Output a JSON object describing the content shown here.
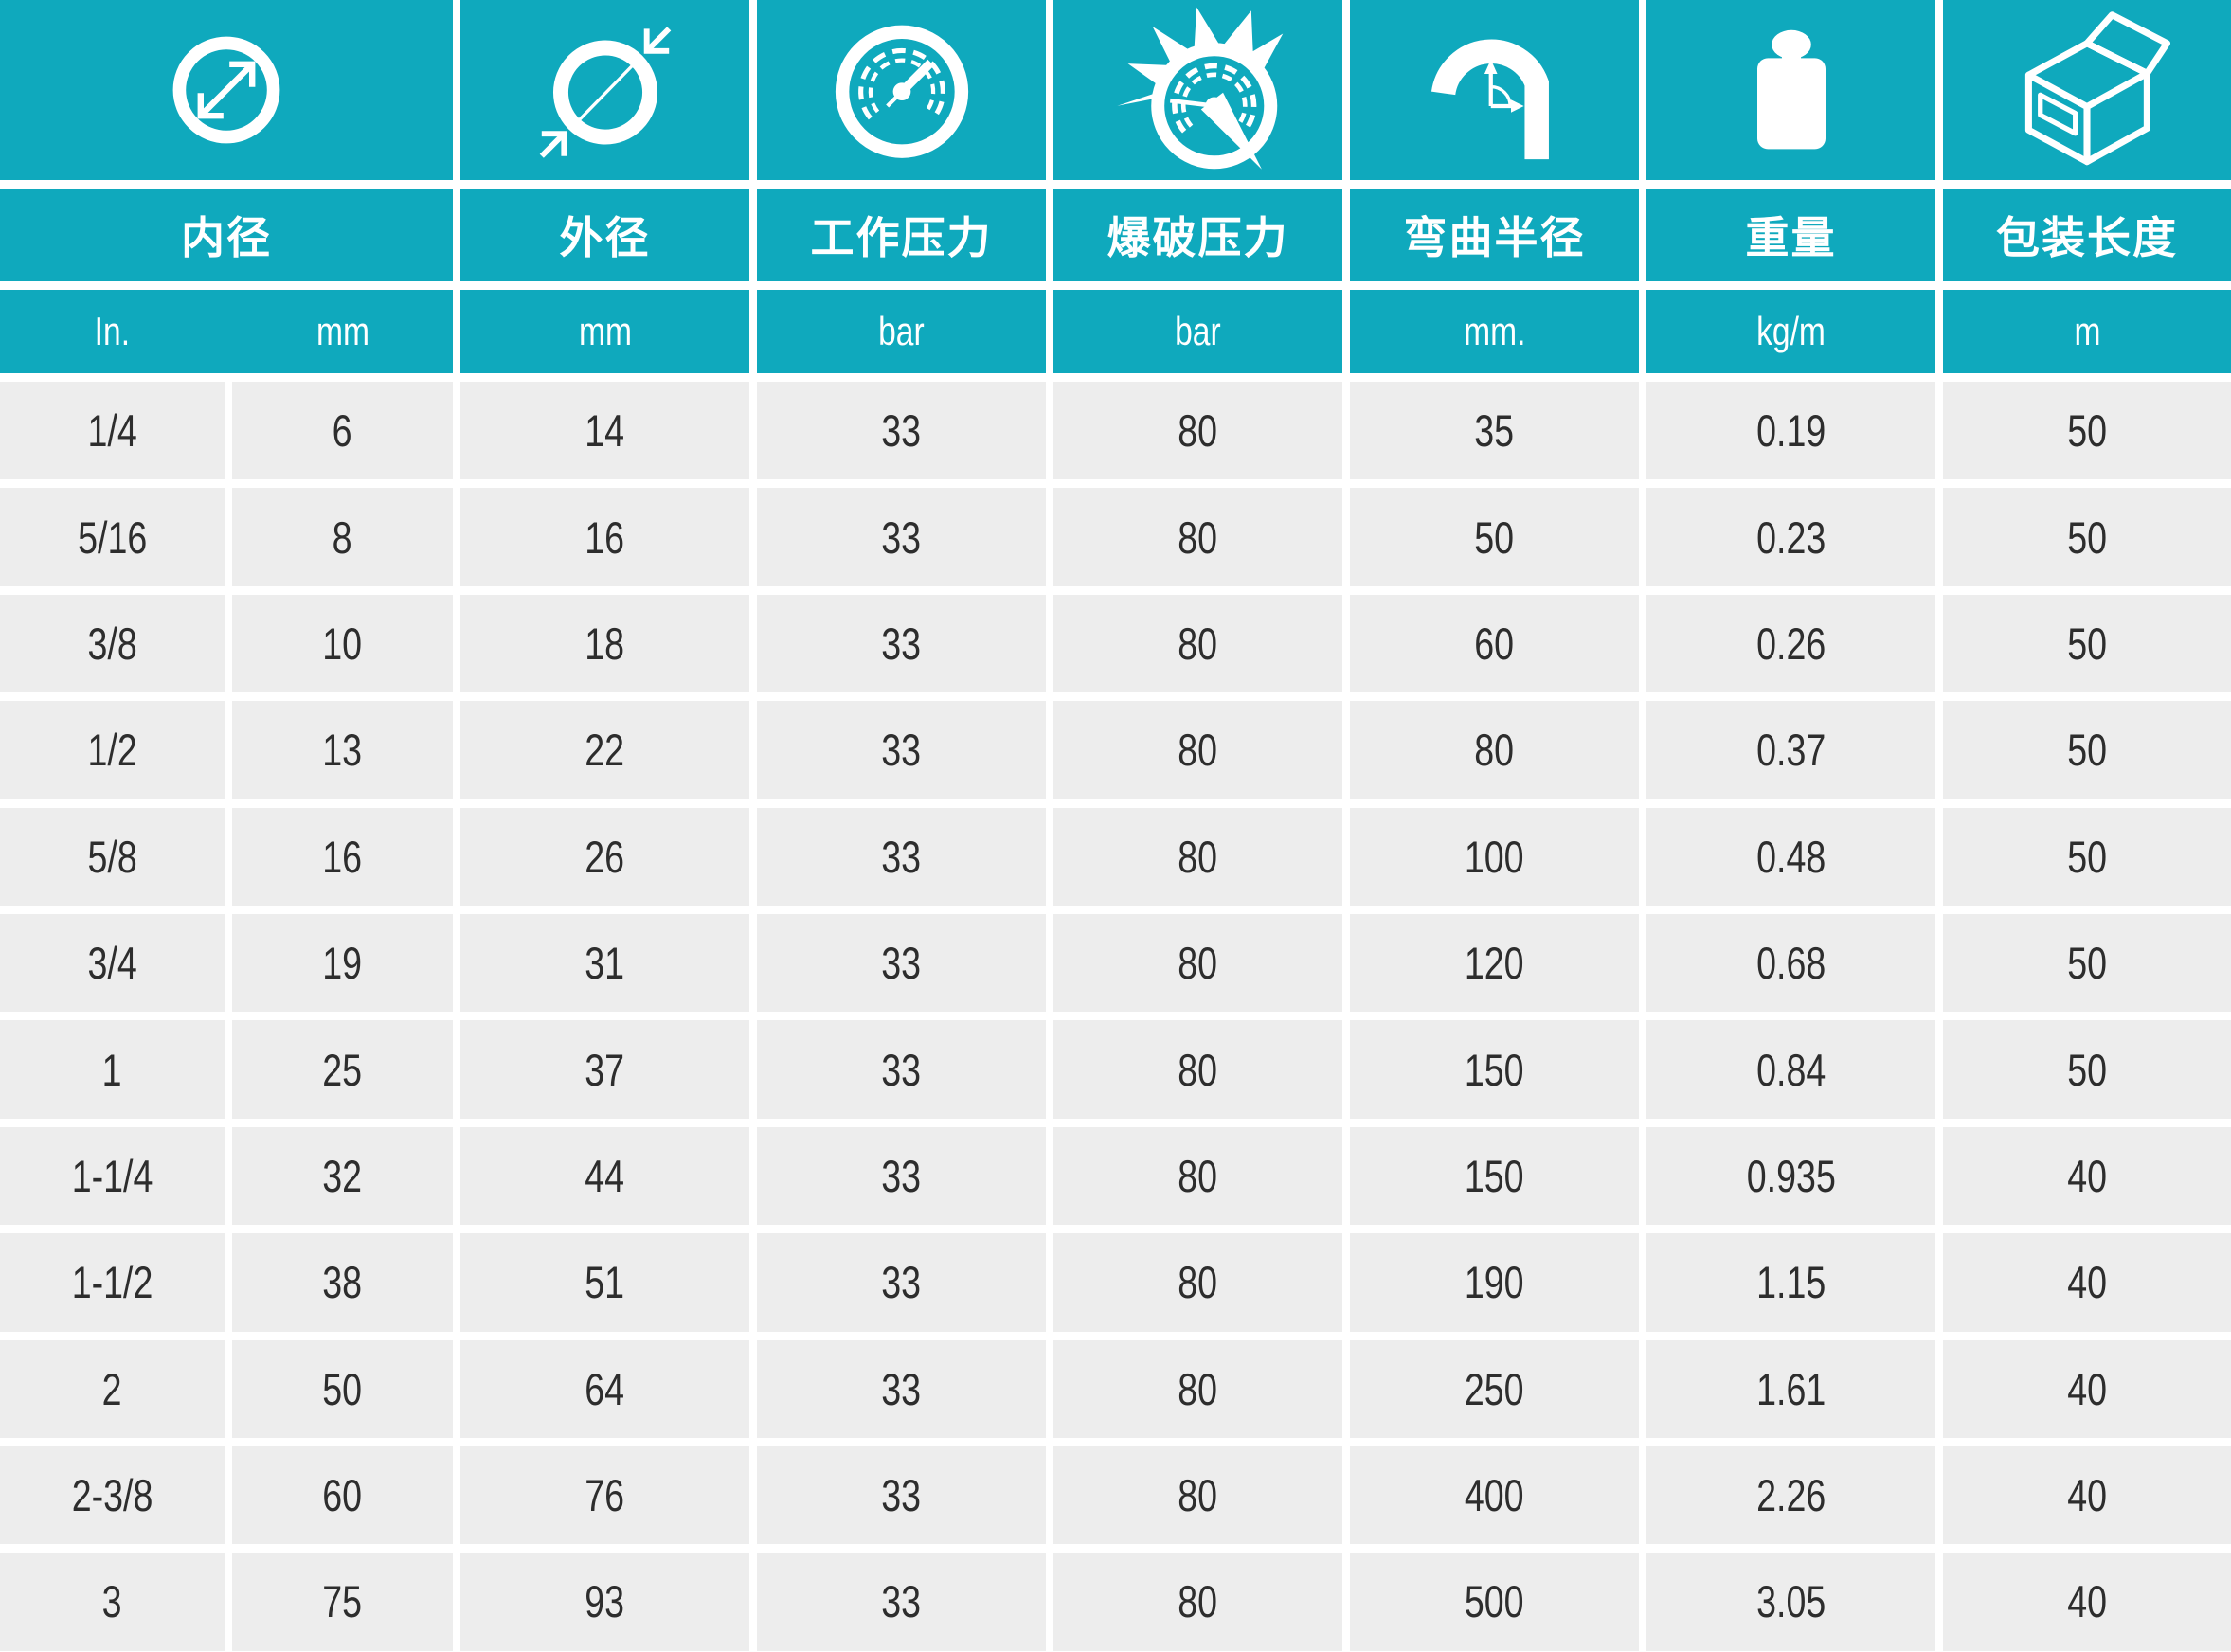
{
  "table": {
    "columns": [
      {
        "title": "内径",
        "icon": "inner-diameter-icon",
        "unit_in": "In.",
        "unit_mm": "mm"
      },
      {
        "title": "外径",
        "icon": "outer-diameter-icon",
        "unit": "mm"
      },
      {
        "title": "工作压力",
        "icon": "working-pressure-gauge-icon",
        "unit": "bar"
      },
      {
        "title": "爆破压力",
        "icon": "burst-pressure-gauge-icon",
        "unit": "bar"
      },
      {
        "title": "弯曲半径",
        "icon": "bend-radius-icon",
        "unit": "mm."
      },
      {
        "title": "重量",
        "icon": "weight-icon",
        "unit": "kg/m"
      },
      {
        "title": "包装长度",
        "icon": "package-box-icon",
        "unit": "m"
      }
    ],
    "rows": [
      [
        "1/4",
        "6",
        "14",
        "33",
        "80",
        "35",
        "0.19",
        "50"
      ],
      [
        "5/16",
        "8",
        "16",
        "33",
        "80",
        "50",
        "0.23",
        "50"
      ],
      [
        "3/8",
        "10",
        "18",
        "33",
        "80",
        "60",
        "0.26",
        "50"
      ],
      [
        "1/2",
        "13",
        "22",
        "33",
        "80",
        "80",
        "0.37",
        "50"
      ],
      [
        "5/8",
        "16",
        "26",
        "33",
        "80",
        "100",
        "0.48",
        "50"
      ],
      [
        "3/4",
        "19",
        "31",
        "33",
        "80",
        "120",
        "0.68",
        "50"
      ],
      [
        "1",
        "25",
        "37",
        "33",
        "80",
        "150",
        "0.84",
        "50"
      ],
      [
        "1-1/4",
        "32",
        "44",
        "33",
        "80",
        "150",
        "0.935",
        "40"
      ],
      [
        "1-1/2",
        "38",
        "51",
        "33",
        "80",
        "190",
        "1.15",
        "40"
      ],
      [
        "2",
        "50",
        "64",
        "33",
        "80",
        "250",
        "1.61",
        "40"
      ],
      [
        "2-3/8",
        "60",
        "76",
        "33",
        "80",
        "400",
        "2.26",
        "40"
      ],
      [
        "3",
        "75",
        "93",
        "33",
        "80",
        "500",
        "3.05",
        "40"
      ]
    ]
  },
  "colors": {
    "teal": "#0FA9BD",
    "cell_gray": "#EDEDED",
    "text": "#2D2D2D",
    "divider": "#FFFFFF"
  }
}
